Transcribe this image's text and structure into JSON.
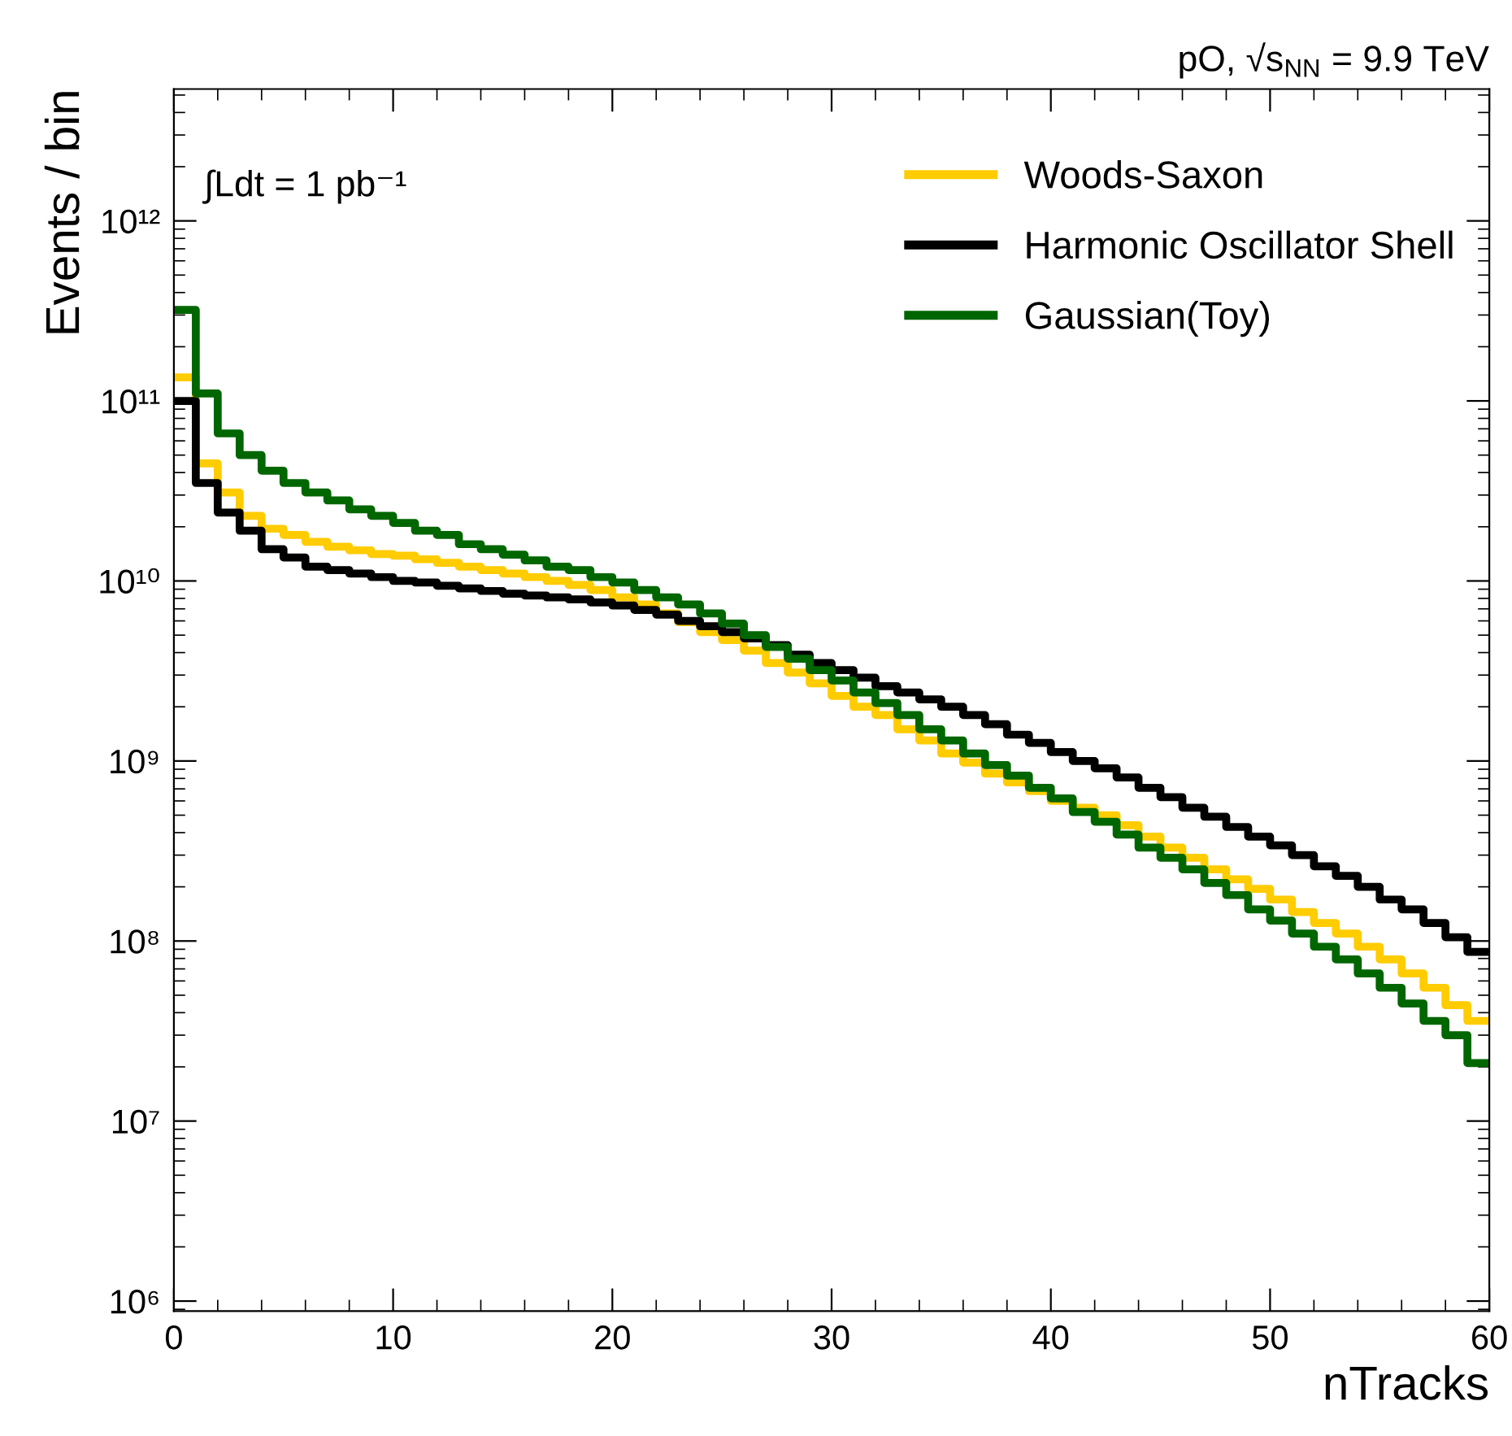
{
  "chart_data": {
    "type": "histogram",
    "xlabel": "nTracks",
    "ylabel": "Events / bin",
    "annotations": [
      "pO, √s$_{NN}$ = 9.9 TeV",
      "∫Ldt = 1 pb⁻¹"
    ],
    "bins": [
      0,
      1,
      2,
      3,
      4,
      5,
      6,
      7,
      8,
      9,
      10,
      11,
      12,
      13,
      14,
      15,
      16,
      17,
      18,
      19,
      20,
      21,
      22,
      23,
      24,
      25,
      26,
      27,
      28,
      29,
      30,
      31,
      32,
      33,
      34,
      35,
      36,
      37,
      38,
      39,
      40,
      41,
      42,
      43,
      44,
      45,
      46,
      47,
      48,
      49,
      50,
      51,
      52,
      53,
      54,
      55,
      56,
      57,
      58,
      59,
      60
    ],
    "series": [
      {
        "name": "Woods-Saxon",
        "color": "#ffcc00",
        "values": [
          135000000000.0,
          45000000000.0,
          31000000000.0,
          23000000000.0,
          19500000000.0,
          18000000000.0,
          16500000000.0,
          15500000000.0,
          14800000000.0,
          14100000000.0,
          13800000000.0,
          13200000000.0,
          12600000000.0,
          12000000000.0,
          11500000000.0,
          11000000000.0,
          10500000000.0,
          10000000000.0,
          9500000000.0,
          8900000000.0,
          8100000000.0,
          7400000000.0,
          6600000000.0,
          5900000000.0,
          5200000000.0,
          4700000000.0,
          4100000000.0,
          3500000000.0,
          3100000000.0,
          2700000000.0,
          2300000000.0,
          2000000000.0,
          1800000000.0,
          1500000000.0,
          1300000000.0,
          1100000000.0,
          980000000.0,
          850000000.0,
          760000000.0,
          680000000.0,
          600000000.0,
          550000000.0,
          500000000.0,
          440000000.0,
          380000000.0,
          330000000.0,
          290000000.0,
          250000000.0,
          220000000.0,
          195000000.0,
          170000000.0,
          145000000.0,
          126000000.0,
          110000000.0,
          93000000.0,
          79000000.0,
          66000000.0,
          55000000.0,
          44000000.0,
          36000000.0
        ]
      },
      {
        "name": "Harmonic Oscillator Shell",
        "color": "#000000",
        "values": [
          100000000000.0,
          35000000000.0,
          24000000000.0,
          19000000000.0,
          15000000000.0,
          13500000000.0,
          12000000000.0,
          11500000000.0,
          11000000000.0,
          10500000000.0,
          10000000000.0,
          9800000000.0,
          9400000000.0,
          9100000000.0,
          8800000000.0,
          8500000000.0,
          8300000000.0,
          8100000000.0,
          7900000000.0,
          7600000000.0,
          7300000000.0,
          6900000000.0,
          6500000000.0,
          6000000000.0,
          5600000000.0,
          5200000000.0,
          4800000000.0,
          4400000000.0,
          3900000000.0,
          3500000000.0,
          3200000000.0,
          2900000000.0,
          2600000000.0,
          2400000000.0,
          2200000000.0,
          2000000000.0,
          1800000000.0,
          1600000000.0,
          1400000000.0,
          1260000000.0,
          1120000000.0,
          1000000000.0,
          910000000.0,
          810000000.0,
          710000000.0,
          630000000.0,
          550000000.0,
          490000000.0,
          430000000.0,
          380000000.0,
          340000000.0,
          300000000.0,
          260000000.0,
          230000000.0,
          200000000.0,
          170000000.0,
          150000000.0,
          126000000.0,
          105000000.0,
          87000000.0
        ]
      },
      {
        "name": "Gaussian(Toy)",
        "color": "#006600",
        "values": [
          320000000000.0,
          110000000000.0,
          66000000000.0,
          50000000000.0,
          41000000000.0,
          35000000000.0,
          31000000000.0,
          28000000000.0,
          25000000000.0,
          23000000000.0,
          21000000000.0,
          19000000000.0,
          18000000000.0,
          16000000000.0,
          15000000000.0,
          14000000000.0,
          13000000000.0,
          12000000000.0,
          11500000000.0,
          10500000000.0,
          9800000000.0,
          8900000000.0,
          8100000000.0,
          7400000000.0,
          6600000000.0,
          5800000000.0,
          5000000000.0,
          4300000000.0,
          3700000000.0,
          3200000000.0,
          2800000000.0,
          2400000000.0,
          2100000000.0,
          1800000000.0,
          1500000000.0,
          1300000000.0,
          1100000000.0,
          950000000.0,
          830000000.0,
          710000000.0,
          620000000.0,
          520000000.0,
          460000000.0,
          390000000.0,
          330000000.0,
          290000000.0,
          250000000.0,
          210000000.0,
          180000000.0,
          150000000.0,
          130000000.0,
          110000000.0,
          93000000.0,
          79000000.0,
          66000000.0,
          55000000.0,
          45000000.0,
          36000000.0,
          30000000.0,
          21000000.0
        ]
      }
    ],
    "log": "y",
    "xlim": [
      0,
      60
    ],
    "xticks": [
      0,
      10,
      20,
      30,
      40,
      50,
      60
    ],
    "ylim": [
      880000.0,
      5400000000000.0
    ],
    "yticks": [
      {
        "value": 1000000.0,
        "label": "10⁶"
      },
      {
        "value": 10000000.0,
        "label": "10⁷"
      },
      {
        "value": 100000000.0,
        "label": "10⁸"
      },
      {
        "value": 1000000000.0,
        "label": "10⁹"
      },
      {
        "value": 10000000000.0,
        "label": "10¹⁰"
      },
      {
        "value": 100000000000.0,
        "label": "10¹¹"
      },
      {
        "value": 1000000000000.0,
        "label": "10¹²"
      }
    ],
    "legend": "top right",
    "grid": false
  }
}
